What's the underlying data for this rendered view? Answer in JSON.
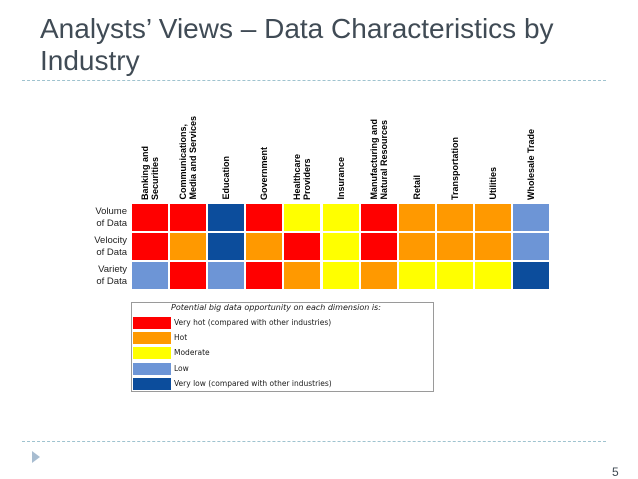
{
  "slide": {
    "title": "Analysts’ Views – Data Characteristics by Industry",
    "page_number": "5"
  },
  "grid": {
    "columns": [
      "Banking and\nSecurities",
      "Communications,\nMedia and Services",
      "Education",
      "Government",
      "Healthcare\nProviders",
      "Insurance",
      "Manufacturing and\nNatural Resources",
      "Retail",
      "Transportation",
      "Utilities",
      "Wholesale Trade"
    ],
    "rows": [
      {
        "label": "Volume\nof Data",
        "levels": [
          "very_hot",
          "very_hot",
          "very_low",
          "very_hot",
          "moderate",
          "moderate",
          "very_hot",
          "hot",
          "hot",
          "hot",
          "low"
        ]
      },
      {
        "label": "Velocity\nof Data",
        "levels": [
          "very_hot",
          "hot",
          "very_low",
          "hot",
          "very_hot",
          "moderate",
          "very_hot",
          "hot",
          "hot",
          "hot",
          "low"
        ]
      },
      {
        "label": "Variety\nof Data",
        "levels": [
          "low",
          "very_hot",
          "low",
          "very_hot",
          "hot",
          "moderate",
          "hot",
          "moderate",
          "moderate",
          "moderate",
          "very_low"
        ]
      }
    ]
  },
  "legend": {
    "header": "Potential big data opportunity on each dimension is:",
    "items": [
      {
        "key": "very_hot",
        "label": "Very hot (compared with other industries)",
        "color": "#ff0000"
      },
      {
        "key": "hot",
        "label": "Hot",
        "color": "#ff9900"
      },
      {
        "key": "moderate",
        "label": "Moderate",
        "color": "#ffff00"
      },
      {
        "key": "low",
        "label": "Low",
        "color": "#6d95d6"
      },
      {
        "key": "very_low",
        "label": "Very low (compared with other industries)",
        "color": "#0c4d9c"
      }
    ]
  }
}
